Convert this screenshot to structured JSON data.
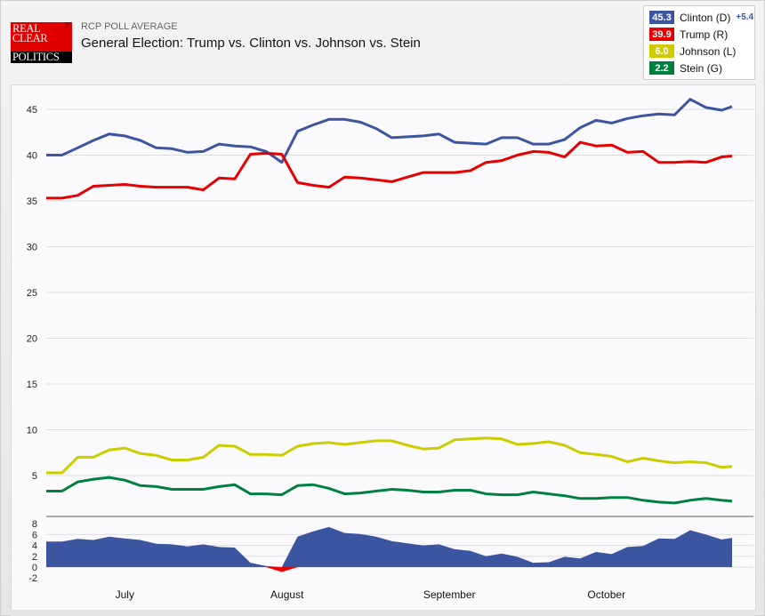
{
  "header": {
    "logo_text": [
      "REAL",
      "CLEAR",
      "POLITICS"
    ],
    "subtitle": "RCP POLL AVERAGE",
    "title": "General Election: Trump vs. Clinton vs. Johnson vs. Stein"
  },
  "legend": [
    {
      "value": "45.3",
      "label": "Clinton (D)",
      "color": "#3c55a0",
      "spread": "+5.4"
    },
    {
      "value": "39.9",
      "label": "Trump (R)",
      "color": "#e60000"
    },
    {
      "value": "6.0",
      "label": "Johnson (L)",
      "color": "#cccc00"
    },
    {
      "value": "2.2",
      "label": "Stein (G)",
      "color": "#008040"
    }
  ],
  "chart_data": [
    {
      "type": "line",
      "title": "",
      "ylim": [
        0.6,
        47.7
      ],
      "y_ticks": [
        "5",
        "10",
        "15",
        "20",
        "25",
        "30",
        "35",
        "40",
        "45"
      ],
      "grid": true,
      "x_tick_labels": [
        "July",
        "August",
        "September",
        "October"
      ],
      "x": [
        "06-16",
        "06-19",
        "06-22",
        "06-25",
        "06-28",
        "07-01",
        "07-04",
        "07-07",
        "07-10",
        "07-13",
        "07-16",
        "07-19",
        "07-22",
        "07-25",
        "07-28",
        "07-31",
        "08-03",
        "08-06",
        "08-09",
        "08-12",
        "08-15",
        "08-18",
        "08-21",
        "08-24",
        "08-27",
        "08-30",
        "09-02",
        "09-05",
        "09-08",
        "09-11",
        "09-14",
        "09-17",
        "09-20",
        "09-23",
        "09-26",
        "09-29",
        "10-02",
        "10-05",
        "10-08",
        "10-11",
        "10-14",
        "10-17",
        "10-20",
        "10-23",
        "10-25"
      ],
      "series": [
        {
          "name": "Clinton (D)",
          "color": "#3c55a0",
          "values": [
            40,
            40,
            40.8,
            41.6,
            42.3,
            42.1,
            41.6,
            40.8,
            40.7,
            40.3,
            40.4,
            41.2,
            41,
            40.9,
            40.4,
            39.2,
            42.6,
            43.3,
            43.9,
            43.9,
            43.6,
            42.9,
            41.9,
            42,
            42.1,
            42.3,
            41.4,
            41.3,
            41.2,
            41.9,
            41.9,
            41.2,
            41.2,
            41.7,
            43,
            43.8,
            43.5,
            44,
            44.3,
            44.5,
            44.4,
            46.1,
            45.2,
            44.9,
            45.3
          ]
        },
        {
          "name": "Trump (R)",
          "color": "#e60000",
          "values": [
            35.3,
            35.3,
            35.6,
            36.6,
            36.7,
            36.8,
            36.6,
            36.5,
            36.5,
            36.5,
            36.2,
            37.5,
            37.4,
            40.1,
            40.2,
            40.1,
            37,
            36.7,
            36.5,
            37.6,
            37.5,
            37.3,
            37.1,
            37.6,
            38.1,
            38.1,
            38.1,
            38.3,
            39.2,
            39.4,
            40,
            40.4,
            40.3,
            39.8,
            41.4,
            41,
            41.1,
            40.3,
            40.4,
            39.2,
            39.2,
            39.3,
            39.2,
            39.8,
            39.9
          ]
        },
        {
          "name": "Johnson (L)",
          "color": "#cccc00",
          "values": [
            5.3,
            5.3,
            7,
            7,
            7.8,
            8,
            7.4,
            7.2,
            6.7,
            6.7,
            7,
            8.3,
            8.2,
            7.3,
            7.3,
            7.2,
            8.2,
            8.5,
            8.6,
            8.4,
            8.6,
            8.8,
            8.8,
            8.3,
            7.9,
            8,
            8.9,
            9,
            9.1,
            9,
            8.4,
            8.5,
            8.7,
            8.3,
            7.5,
            7.3,
            7.1,
            6.5,
            6.9,
            6.6,
            6.4,
            6.5,
            6.4,
            5.9,
            6
          ]
        },
        {
          "name": "Stein (G)",
          "color": "#008040",
          "values": [
            3.3,
            3.3,
            4.3,
            4.6,
            4.8,
            4.5,
            3.9,
            3.8,
            3.5,
            3.5,
            3.5,
            3.8,
            4,
            3,
            3,
            2.9,
            3.9,
            4,
            3.6,
            3,
            3.1,
            3.3,
            3.5,
            3.4,
            3.2,
            3.2,
            3.4,
            3.4,
            3,
            2.9,
            2.9,
            3.2,
            3,
            2.8,
            2.5,
            2.5,
            2.6,
            2.6,
            2.3,
            2.1,
            2,
            2.3,
            2.5,
            2.3,
            2.2
          ]
        }
      ]
    },
    {
      "type": "area",
      "title": "",
      "ylim": [
        -3,
        9
      ],
      "y_ticks": [
        "8",
        "6",
        "4",
        "2",
        "0",
        "-2"
      ],
      "series_note": "Clinton minus Trump spread",
      "positive_color": "#3c55a0",
      "negative_color": "#e60000"
    }
  ]
}
